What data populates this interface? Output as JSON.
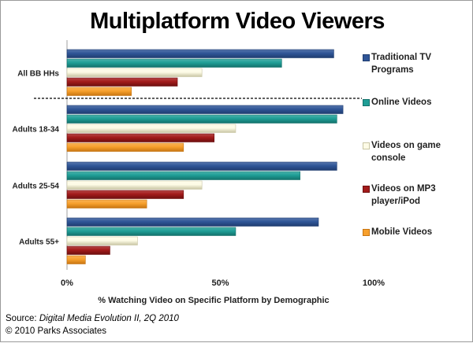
{
  "title": "Multiplatform Video Viewers",
  "source_prefix": "Source: ",
  "source_title": "Digital Media Evolution II, 2Q 2010",
  "copyright": "© 2010 Parks Associates",
  "chart_data": {
    "type": "bar",
    "orientation": "horizontal",
    "title": "Multiplatform Video Viewers",
    "xlabel": "% Watching Video on Specific Platform by Demographic",
    "ylabel": "",
    "xlim": [
      0,
      100
    ],
    "x_ticks": [
      "0%",
      "50%",
      "100%"
    ],
    "grid": false,
    "legend_position": "right",
    "categories": [
      "All BB HHs",
      "Adults 18-34",
      "Adults 25-54",
      "Adults 55+"
    ],
    "series": [
      {
        "name": "Traditional TV Programs",
        "color": "#2f5597",
        "values": [
          87,
          90,
          88,
          82
        ]
      },
      {
        "name": "Online Videos",
        "color": "#1f9e96",
        "values": [
          70,
          88,
          76,
          55
        ]
      },
      {
        "name": "Videos on game console",
        "color": "#fdfbe6",
        "values": [
          44,
          55,
          44,
          23
        ]
      },
      {
        "name": "Videos on MP3 player/iPod",
        "color": "#a31b1b",
        "values": [
          36,
          48,
          38,
          14
        ]
      },
      {
        "name": "Mobile Videos",
        "color": "#f7a02d",
        "values": [
          21,
          38,
          26,
          6
        ]
      }
    ]
  }
}
